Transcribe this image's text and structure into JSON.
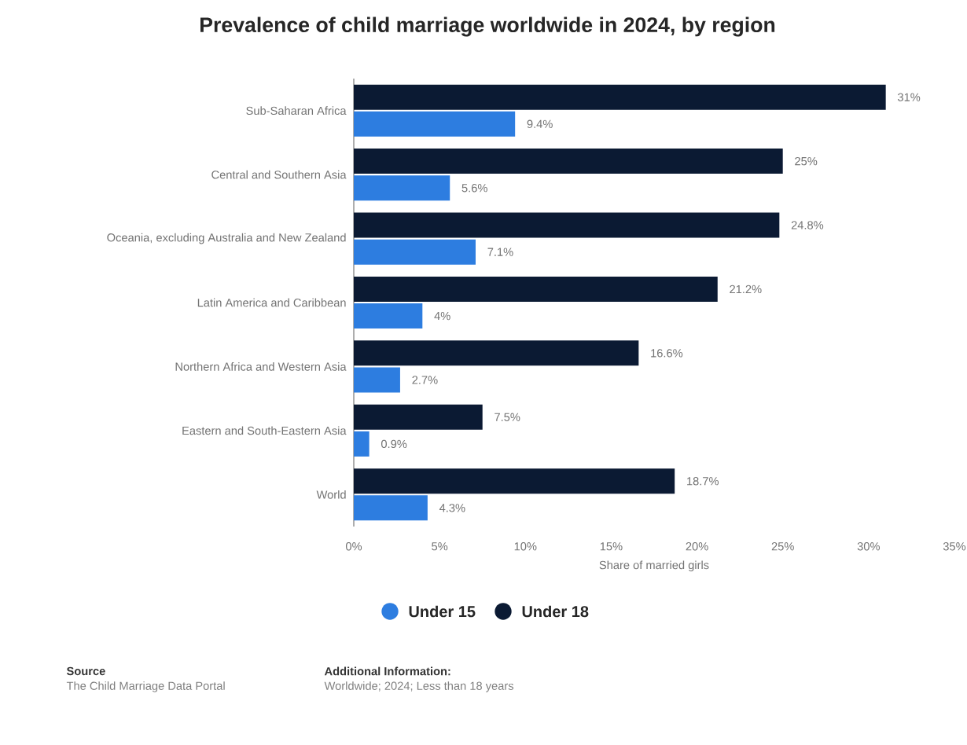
{
  "chart_data": {
    "type": "bar",
    "orientation": "horizontal",
    "title": "Prevalence of child marriage worldwide in 2024, by region",
    "categories": [
      "Sub-Saharan Africa",
      "Central and Southern Asia",
      "Oceania, excluding Australia and New Zealand",
      "Latin America and Caribbean",
      "Northern Africa and Western Asia",
      "Eastern and South-Eastern Asia",
      "World"
    ],
    "series": [
      {
        "name": "Under 15",
        "color": "#2d7de0",
        "values": [
          9.4,
          5.6,
          7.1,
          4,
          2.7,
          0.9,
          4.3
        ],
        "value_labels": [
          "9.4%",
          "5.6%",
          "7.1%",
          "4%",
          "2.7%",
          "0.9%",
          "4.3%"
        ]
      },
      {
        "name": "Under 18",
        "color": "#0b1a33",
        "values": [
          31,
          25,
          24.8,
          21.2,
          16.6,
          7.5,
          18.7
        ],
        "value_labels": [
          "31%",
          "25%",
          "24.8%",
          "21.2%",
          "16.6%",
          "7.5%",
          "18.7%"
        ]
      }
    ],
    "xlabel": "Share of married girls",
    "xlim": [
      0,
      35
    ],
    "xticks": [
      {
        "value": 0,
        "label": "0%"
      },
      {
        "value": 5,
        "label": "5%"
      },
      {
        "value": 10,
        "label": "10%"
      },
      {
        "value": 15,
        "label": "15%"
      },
      {
        "value": 20,
        "label": "20%"
      },
      {
        "value": 25,
        "label": "25%"
      },
      {
        "value": 30,
        "label": "30%"
      },
      {
        "value": 35,
        "label": "35%"
      }
    ],
    "grid": false,
    "legend": "bottom",
    "marker": "circle",
    "annotations": [
      "Source",
      "The Child Marriage Data Portal",
      "Additional Information:",
      "Worldwide; 2024; Less than 18 years"
    ]
  }
}
